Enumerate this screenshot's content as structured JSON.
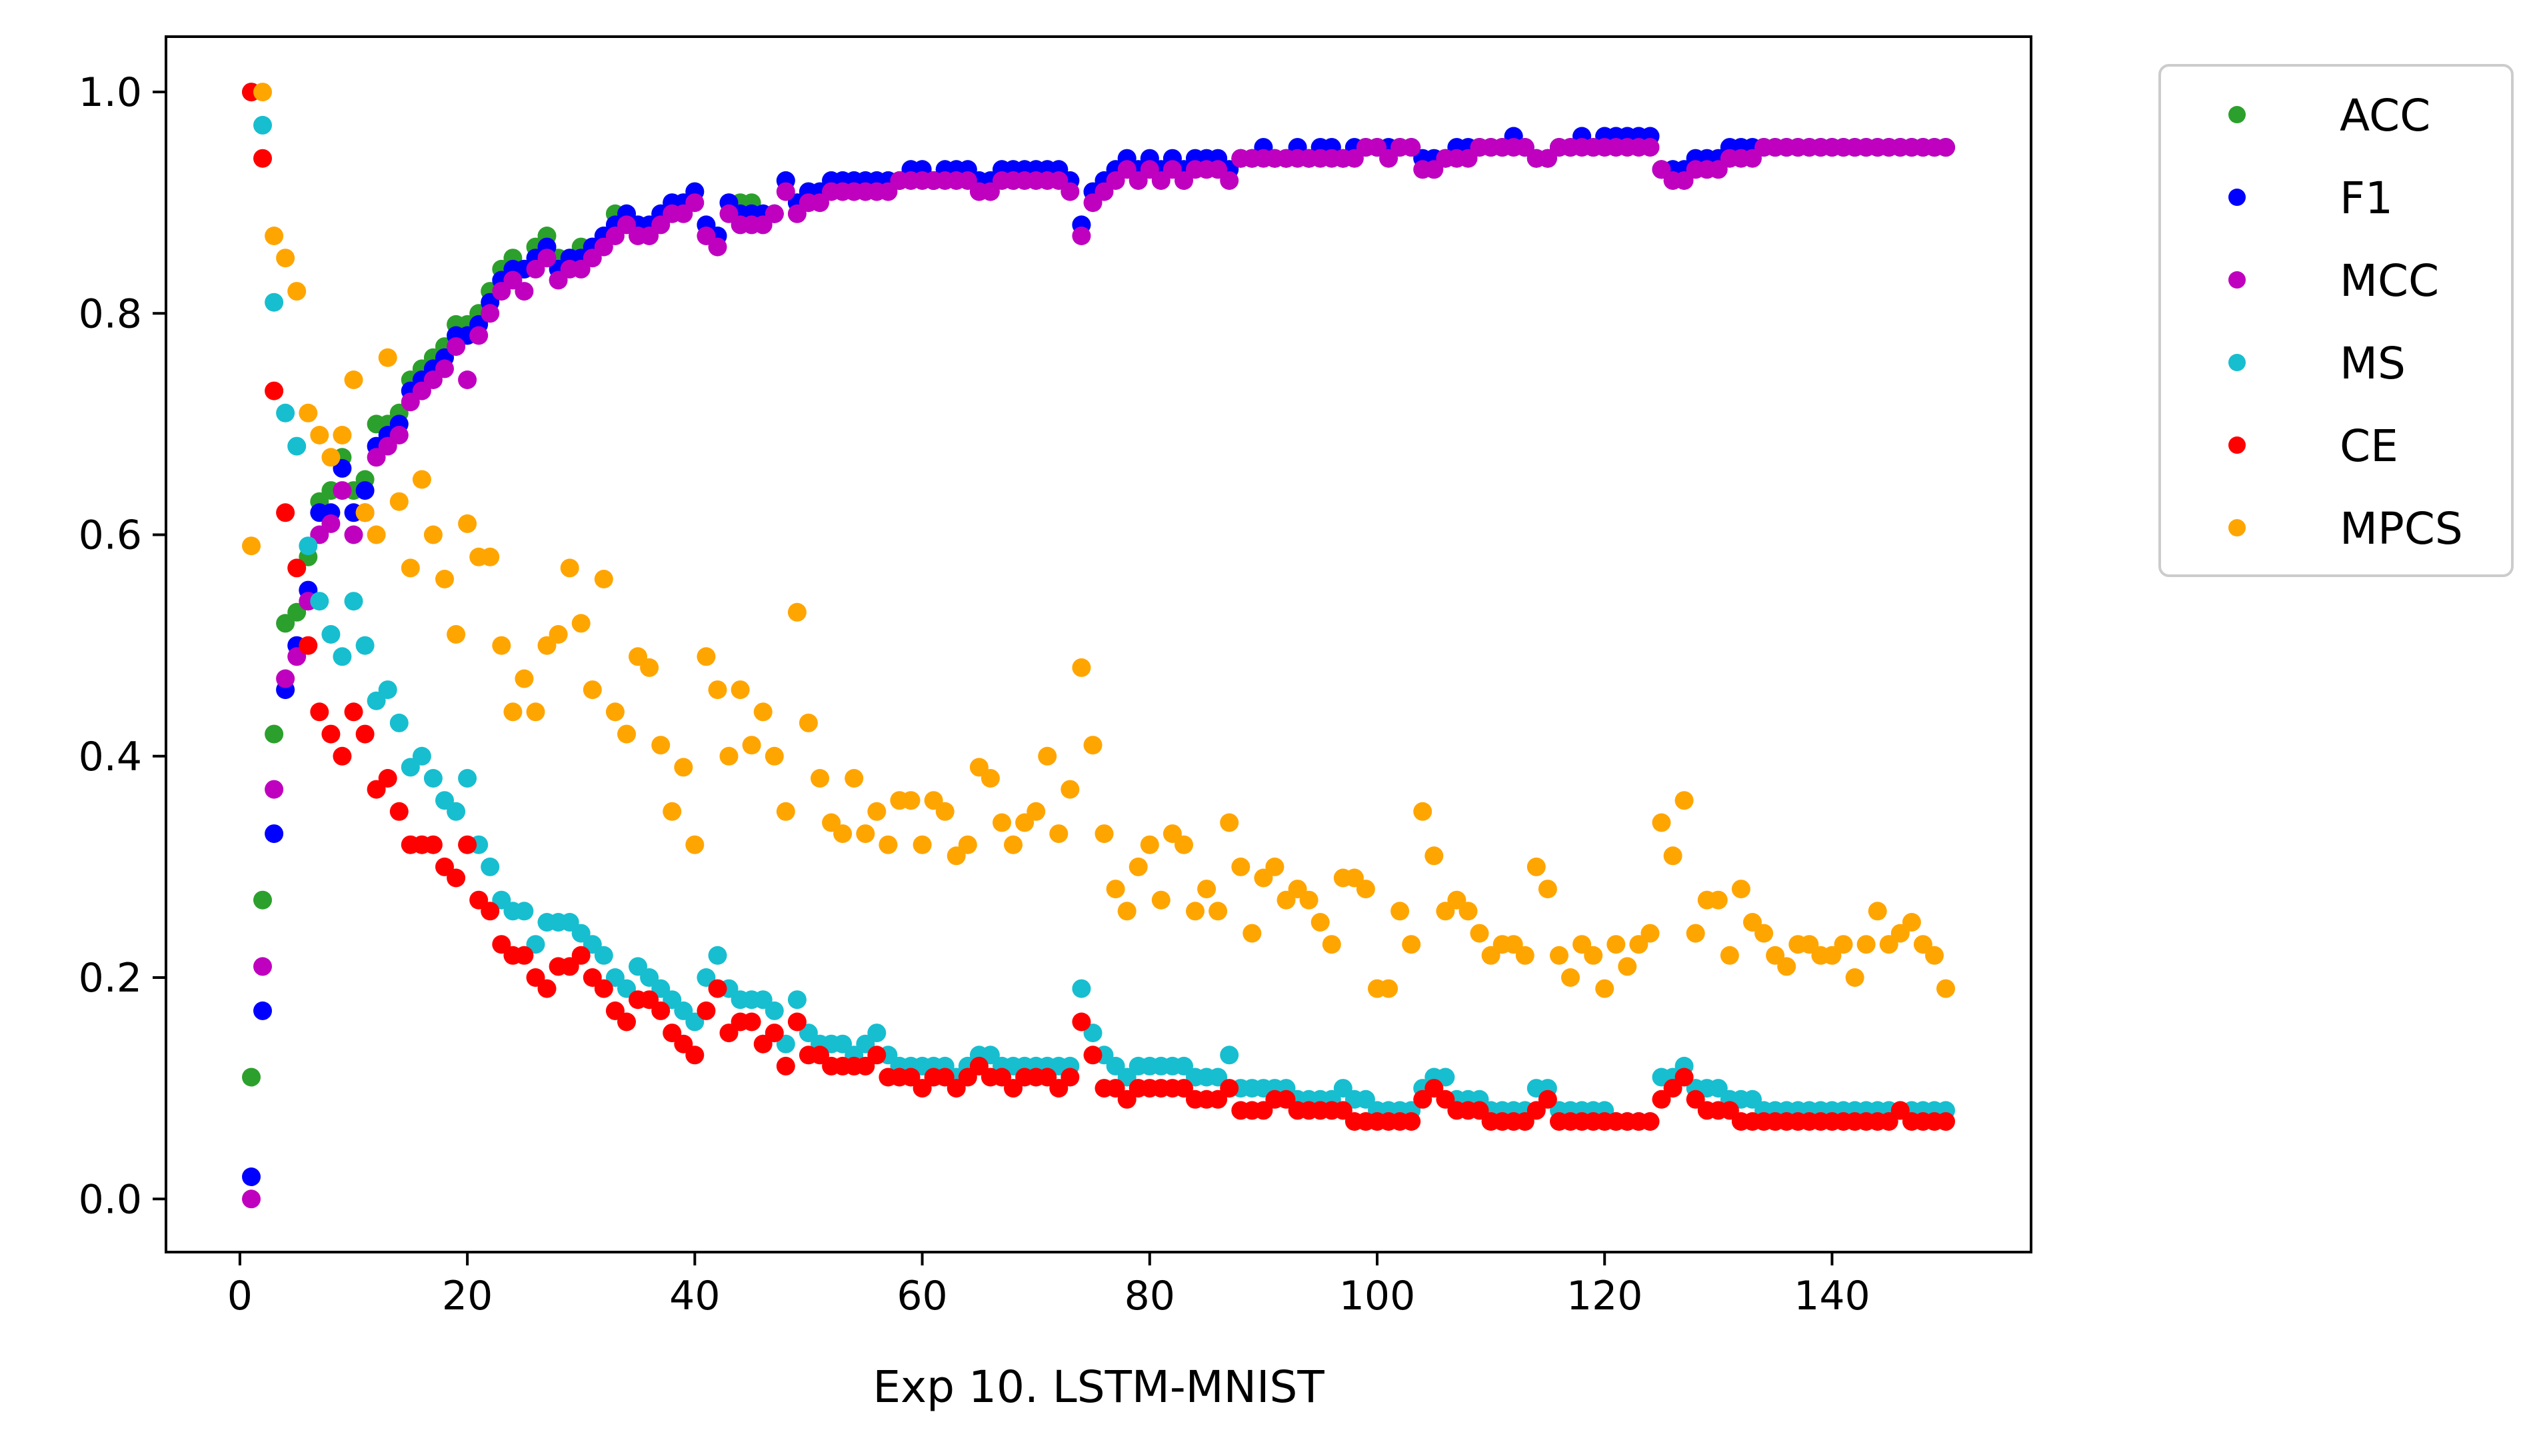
{
  "chart_data": {
    "type": "scatter",
    "title": "",
    "xlabel": "Exp 10. LSTM-MNIST",
    "ylabel": "",
    "xlim": [
      -6.5,
      157.5
    ],
    "ylim": [
      -0.048,
      1.05
    ],
    "xticks": [
      0,
      20,
      40,
      60,
      80,
      100,
      120,
      140
    ],
    "yticks": [
      0.0,
      0.2,
      0.4,
      0.6,
      0.8,
      1.0
    ],
    "xtick_labels": [
      "0",
      "20",
      "40",
      "60",
      "80",
      "100",
      "120",
      "140"
    ],
    "ytick_labels": [
      "0.0",
      "0.2",
      "0.4",
      "0.6",
      "0.8",
      "1.0"
    ],
    "grid": false,
    "legend_position": "outside top-right",
    "x": [
      1,
      2,
      3,
      4,
      5,
      6,
      7,
      8,
      9,
      10,
      11,
      12,
      13,
      14,
      15,
      16,
      17,
      18,
      19,
      20,
      21,
      22,
      23,
      24,
      25,
      26,
      27,
      28,
      29,
      30,
      31,
      32,
      33,
      34,
      35,
      36,
      37,
      38,
      39,
      40,
      41,
      42,
      43,
      44,
      45,
      46,
      47,
      48,
      49,
      50,
      51,
      52,
      53,
      54,
      55,
      56,
      57,
      58,
      59,
      60,
      61,
      62,
      63,
      64,
      65,
      66,
      67,
      68,
      69,
      70,
      71,
      72,
      73,
      74,
      75,
      76,
      77,
      78,
      79,
      80,
      81,
      82,
      83,
      84,
      85,
      86,
      87,
      88,
      89,
      90,
      91,
      92,
      93,
      94,
      95,
      96,
      97,
      98,
      99,
      100,
      101,
      102,
      103,
      104,
      105,
      106,
      107,
      108,
      109,
      110,
      111,
      112,
      113,
      114,
      115,
      116,
      117,
      118,
      119,
      120,
      121,
      122,
      123,
      124,
      125,
      126,
      127,
      128,
      129,
      130,
      131,
      132,
      133,
      134,
      135,
      136,
      137,
      138,
      139,
      140,
      141,
      142,
      143,
      144,
      145,
      146,
      147,
      148,
      149,
      150
    ],
    "series": [
      {
        "name": "ACC",
        "color": "#2ca02c",
        "values": [
          0.11,
          0.27,
          0.42,
          0.52,
          0.53,
          0.58,
          0.63,
          0.64,
          0.67,
          0.64,
          0.65,
          0.7,
          0.7,
          0.71,
          0.74,
          0.75,
          0.76,
          0.77,
          0.79,
          0.79,
          0.8,
          0.82,
          0.84,
          0.85,
          0.84,
          0.86,
          0.87,
          0.85,
          0.85,
          0.86,
          0.86,
          0.87,
          0.89,
          0.89,
          0.88,
          0.88,
          0.89,
          0.9,
          0.9,
          0.91,
          0.88,
          0.87,
          0.9,
          0.9,
          0.9,
          0.89,
          0.89,
          0.92,
          0.9,
          0.91,
          0.91,
          0.92,
          0.92,
          0.92,
          0.92,
          0.92,
          0.92,
          0.92,
          0.93,
          0.93,
          0.92,
          0.93,
          0.93,
          0.93,
          0.92,
          0.92,
          0.93,
          0.93,
          0.93,
          0.93,
          0.93,
          0.93,
          0.92,
          0.88,
          0.91,
          0.92,
          0.93,
          0.94,
          0.93,
          0.94,
          0.93,
          0.94,
          0.93,
          0.94,
          0.94,
          0.94,
          0.93,
          0.94,
          0.94,
          0.95,
          0.94,
          0.94,
          0.95,
          0.94,
          0.95,
          0.95,
          0.94,
          0.95,
          0.95,
          0.95,
          0.95,
          0.95,
          0.95,
          0.94,
          0.94,
          0.94,
          0.95,
          0.95,
          0.95,
          0.95,
          0.95,
          0.96,
          0.95,
          0.94,
          0.94,
          0.95,
          0.95,
          0.96,
          0.95,
          0.96,
          0.96,
          0.96,
          0.96,
          0.96,
          0.93,
          0.93,
          0.93,
          0.94,
          0.94,
          0.94,
          0.95,
          0.95,
          0.95,
          0.95,
          0.95,
          0.95,
          0.95,
          0.95,
          0.95,
          0.95,
          0.95,
          0.95,
          0.95,
          0.95,
          0.95,
          0.95,
          0.95,
          0.95,
          0.95,
          0.95
        ]
      },
      {
        "name": "F1",
        "color": "#0000ff",
        "values": [
          0.02,
          0.17,
          0.33,
          0.46,
          0.5,
          0.55,
          0.62,
          0.62,
          0.66,
          0.62,
          0.64,
          0.68,
          0.69,
          0.7,
          0.73,
          0.74,
          0.75,
          0.76,
          0.78,
          0.78,
          0.79,
          0.81,
          0.83,
          0.84,
          0.84,
          0.85,
          0.86,
          0.84,
          0.85,
          0.85,
          0.86,
          0.87,
          0.88,
          0.89,
          0.88,
          0.88,
          0.89,
          0.9,
          0.9,
          0.91,
          0.88,
          0.87,
          0.9,
          0.89,
          0.89,
          0.89,
          0.89,
          0.92,
          0.9,
          0.91,
          0.91,
          0.92,
          0.92,
          0.92,
          0.92,
          0.92,
          0.92,
          0.92,
          0.93,
          0.93,
          0.92,
          0.93,
          0.93,
          0.93,
          0.92,
          0.92,
          0.93,
          0.93,
          0.93,
          0.93,
          0.93,
          0.93,
          0.92,
          0.88,
          0.91,
          0.92,
          0.93,
          0.94,
          0.93,
          0.94,
          0.93,
          0.94,
          0.93,
          0.94,
          0.94,
          0.94,
          0.93,
          0.94,
          0.94,
          0.95,
          0.94,
          0.94,
          0.95,
          0.94,
          0.95,
          0.95,
          0.94,
          0.95,
          0.95,
          0.95,
          0.95,
          0.95,
          0.95,
          0.94,
          0.94,
          0.94,
          0.95,
          0.95,
          0.95,
          0.95,
          0.95,
          0.96,
          0.95,
          0.94,
          0.94,
          0.95,
          0.95,
          0.96,
          0.95,
          0.96,
          0.96,
          0.96,
          0.96,
          0.96,
          0.93,
          0.93,
          0.93,
          0.94,
          0.94,
          0.94,
          0.95,
          0.95,
          0.95,
          0.95,
          0.95,
          0.95,
          0.95,
          0.95,
          0.95,
          0.95,
          0.95,
          0.95,
          0.95,
          0.95,
          0.95,
          0.95,
          0.95,
          0.95,
          0.95,
          0.95
        ]
      },
      {
        "name": "MCC",
        "color": "#bf00bf",
        "values": [
          0.0,
          0.21,
          0.37,
          0.47,
          0.49,
          0.54,
          0.6,
          0.61,
          0.64,
          0.6,
          0.62,
          0.67,
          0.68,
          0.69,
          0.72,
          0.73,
          0.74,
          0.75,
          0.77,
          0.74,
          0.78,
          0.8,
          0.82,
          0.83,
          0.82,
          0.84,
          0.85,
          0.83,
          0.84,
          0.84,
          0.85,
          0.86,
          0.87,
          0.88,
          0.87,
          0.87,
          0.88,
          0.89,
          0.89,
          0.9,
          0.87,
          0.86,
          0.89,
          0.88,
          0.88,
          0.88,
          0.89,
          0.91,
          0.89,
          0.9,
          0.9,
          0.91,
          0.91,
          0.91,
          0.91,
          0.91,
          0.91,
          0.92,
          0.92,
          0.92,
          0.92,
          0.92,
          0.92,
          0.92,
          0.91,
          0.91,
          0.92,
          0.92,
          0.92,
          0.92,
          0.92,
          0.92,
          0.91,
          0.87,
          0.9,
          0.91,
          0.92,
          0.93,
          0.92,
          0.93,
          0.92,
          0.93,
          0.92,
          0.93,
          0.93,
          0.93,
          0.92,
          0.94,
          0.94,
          0.94,
          0.94,
          0.94,
          0.94,
          0.94,
          0.94,
          0.94,
          0.94,
          0.94,
          0.95,
          0.95,
          0.94,
          0.95,
          0.95,
          0.93,
          0.93,
          0.94,
          0.94,
          0.94,
          0.95,
          0.95,
          0.95,
          0.95,
          0.95,
          0.94,
          0.94,
          0.95,
          0.95,
          0.95,
          0.95,
          0.95,
          0.95,
          0.95,
          0.95,
          0.95,
          0.93,
          0.92,
          0.92,
          0.93,
          0.93,
          0.93,
          0.94,
          0.94,
          0.94,
          0.95,
          0.95,
          0.95,
          0.95,
          0.95,
          0.95,
          0.95,
          0.95,
          0.95,
          0.95,
          0.95,
          0.95,
          0.95,
          0.95,
          0.95,
          0.95,
          0.95
        ]
      },
      {
        "name": "MS",
        "color": "#17becf",
        "values": [
          1.0,
          0.97,
          0.81,
          0.71,
          0.68,
          0.59,
          0.54,
          0.51,
          0.49,
          0.54,
          0.5,
          0.45,
          0.46,
          0.43,
          0.39,
          0.4,
          0.38,
          0.36,
          0.35,
          0.38,
          0.32,
          0.3,
          0.27,
          0.26,
          0.26,
          0.23,
          0.25,
          0.25,
          0.25,
          0.24,
          0.23,
          0.22,
          0.2,
          0.19,
          0.21,
          0.2,
          0.19,
          0.18,
          0.17,
          0.16,
          0.2,
          0.22,
          0.19,
          0.18,
          0.18,
          0.18,
          0.17,
          0.14,
          0.18,
          0.15,
          0.14,
          0.14,
          0.14,
          0.13,
          0.14,
          0.15,
          0.13,
          0.12,
          0.12,
          0.12,
          0.12,
          0.12,
          0.11,
          0.12,
          0.13,
          0.13,
          0.12,
          0.12,
          0.12,
          0.12,
          0.12,
          0.12,
          0.12,
          0.19,
          0.15,
          0.13,
          0.12,
          0.11,
          0.12,
          0.12,
          0.12,
          0.12,
          0.12,
          0.11,
          0.11,
          0.11,
          0.13,
          0.1,
          0.1,
          0.1,
          0.1,
          0.1,
          0.09,
          0.09,
          0.09,
          0.09,
          0.1,
          0.09,
          0.09,
          0.08,
          0.08,
          0.08,
          0.08,
          0.1,
          0.11,
          0.11,
          0.09,
          0.09,
          0.09,
          0.08,
          0.08,
          0.08,
          0.08,
          0.1,
          0.1,
          0.08,
          0.08,
          0.08,
          0.08,
          0.08,
          0.07,
          0.07,
          0.07,
          0.07,
          0.11,
          0.11,
          0.12,
          0.1,
          0.1,
          0.1,
          0.09,
          0.09,
          0.09,
          0.08,
          0.08,
          0.08,
          0.08,
          0.08,
          0.08,
          0.08,
          0.08,
          0.08,
          0.08,
          0.08,
          0.08,
          0.08,
          0.08,
          0.08,
          0.08,
          0.08
        ]
      },
      {
        "name": "CE",
        "color": "#ff0000",
        "values": [
          1.0,
          0.94,
          0.73,
          0.62,
          0.57,
          0.5,
          0.44,
          0.42,
          0.4,
          0.44,
          0.42,
          0.37,
          0.38,
          0.35,
          0.32,
          0.32,
          0.32,
          0.3,
          0.29,
          0.32,
          0.27,
          0.26,
          0.23,
          0.22,
          0.22,
          0.2,
          0.19,
          0.21,
          0.21,
          0.22,
          0.2,
          0.19,
          0.17,
          0.16,
          0.18,
          0.18,
          0.17,
          0.15,
          0.14,
          0.13,
          0.17,
          0.19,
          0.15,
          0.16,
          0.16,
          0.14,
          0.15,
          0.12,
          0.16,
          0.13,
          0.13,
          0.12,
          0.12,
          0.12,
          0.12,
          0.13,
          0.11,
          0.11,
          0.11,
          0.1,
          0.11,
          0.11,
          0.1,
          0.11,
          0.12,
          0.11,
          0.11,
          0.1,
          0.11,
          0.11,
          0.11,
          0.1,
          0.11,
          0.16,
          0.13,
          0.1,
          0.1,
          0.09,
          0.1,
          0.1,
          0.1,
          0.1,
          0.1,
          0.09,
          0.09,
          0.09,
          0.1,
          0.08,
          0.08,
          0.08,
          0.09,
          0.09,
          0.08,
          0.08,
          0.08,
          0.08,
          0.08,
          0.07,
          0.07,
          0.07,
          0.07,
          0.07,
          0.07,
          0.09,
          0.1,
          0.09,
          0.08,
          0.08,
          0.08,
          0.07,
          0.07,
          0.07,
          0.07,
          0.08,
          0.09,
          0.07,
          0.07,
          0.07,
          0.07,
          0.07,
          0.07,
          0.07,
          0.07,
          0.07,
          0.09,
          0.1,
          0.11,
          0.09,
          0.08,
          0.08,
          0.08,
          0.07,
          0.07,
          0.07,
          0.07,
          0.07,
          0.07,
          0.07,
          0.07,
          0.07,
          0.07,
          0.07,
          0.07,
          0.07,
          0.07,
          0.08,
          0.07,
          0.07,
          0.07,
          0.07
        ]
      },
      {
        "name": "MPCS",
        "color": "#ffa500",
        "values": [
          0.59,
          1.0,
          0.87,
          0.85,
          0.82,
          0.71,
          0.69,
          0.67,
          0.69,
          0.74,
          0.62,
          0.6,
          0.76,
          0.63,
          0.57,
          0.65,
          0.6,
          0.56,
          0.51,
          0.61,
          0.58,
          0.58,
          0.5,
          0.44,
          0.47,
          0.44,
          0.5,
          0.51,
          0.57,
          0.52,
          0.46,
          0.56,
          0.44,
          0.42,
          0.49,
          0.48,
          0.41,
          0.35,
          0.39,
          0.32,
          0.49,
          0.46,
          0.4,
          0.46,
          0.41,
          0.44,
          0.4,
          0.35,
          0.53,
          0.43,
          0.38,
          0.34,
          0.33,
          0.38,
          0.33,
          0.35,
          0.32,
          0.36,
          0.36,
          0.32,
          0.36,
          0.35,
          0.31,
          0.32,
          0.39,
          0.38,
          0.34,
          0.32,
          0.34,
          0.35,
          0.4,
          0.33,
          0.37,
          0.48,
          0.41,
          0.33,
          0.28,
          0.26,
          0.3,
          0.32,
          0.27,
          0.33,
          0.32,
          0.26,
          0.28,
          0.26,
          0.34,
          0.3,
          0.24,
          0.29,
          0.3,
          0.27,
          0.28,
          0.27,
          0.25,
          0.23,
          0.29,
          0.29,
          0.28,
          0.19,
          0.19,
          0.26,
          0.23,
          0.35,
          0.31,
          0.26,
          0.27,
          0.26,
          0.24,
          0.22,
          0.23,
          0.23,
          0.22,
          0.3,
          0.28,
          0.22,
          0.2,
          0.23,
          0.22,
          0.19,
          0.23,
          0.21,
          0.23,
          0.24,
          0.34,
          0.31,
          0.36,
          0.24,
          0.27,
          0.27,
          0.22,
          0.28,
          0.25,
          0.24,
          0.22,
          0.21,
          0.23,
          0.23,
          0.22,
          0.22,
          0.23,
          0.2,
          0.23,
          0.26,
          0.23,
          0.24,
          0.25,
          0.23,
          0.22,
          0.19
        ]
      }
    ]
  }
}
